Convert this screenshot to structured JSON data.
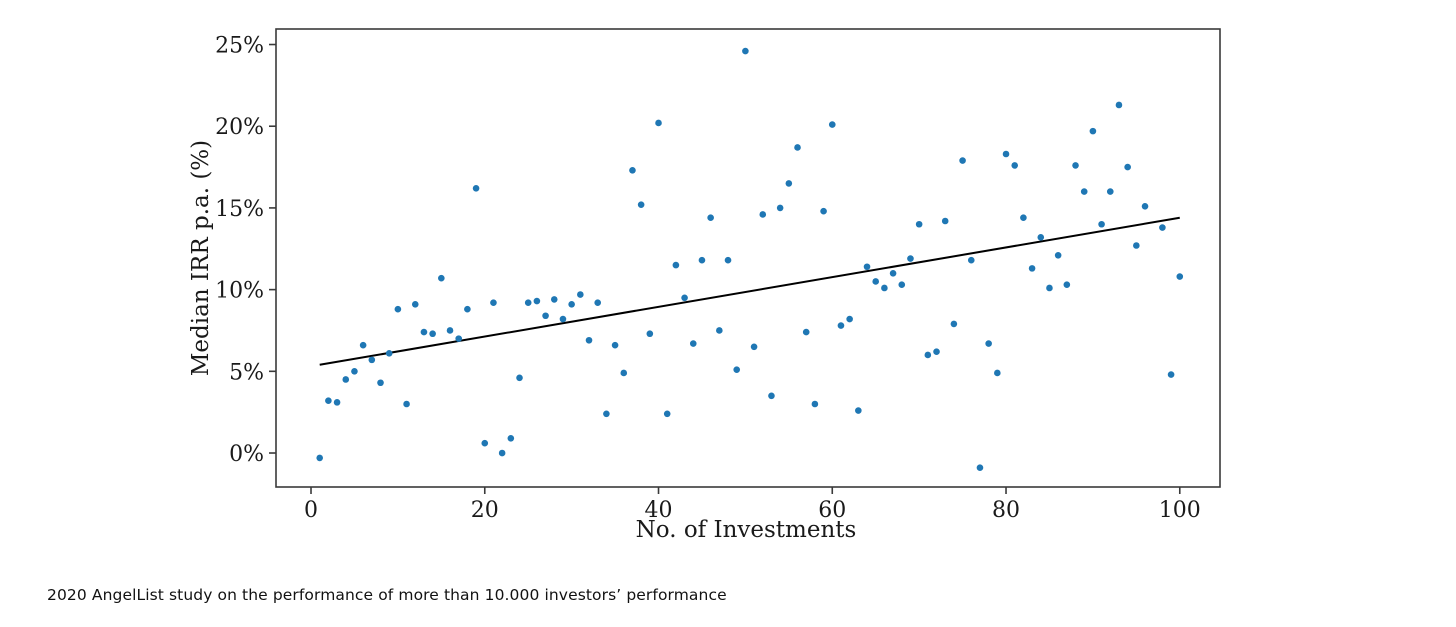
{
  "caption": "2020 AngelList study on the performance of more than 10.000 investors’ performance",
  "chart_data": {
    "type": "scatter",
    "title": "",
    "xlabel": "No. of Investments",
    "ylabel": "Median IRR p.a. (%)",
    "xlim": [
      -4.03,
      104.63
    ],
    "ylim": [
      -2.08,
      25.95
    ],
    "x_ticks": [
      0,
      20,
      40,
      60,
      80,
      100
    ],
    "y_ticks": [
      0,
      5,
      10,
      15,
      20,
      25
    ],
    "y_tick_labels": [
      "0%",
      "5%",
      "10%",
      "15%",
      "20%",
      "25%"
    ],
    "grid": false,
    "legend": "none",
    "point_color": "#1f77b4",
    "axis_color": "#3a3a3a",
    "trend_line": {
      "color": "#000000",
      "x1": 1,
      "y1": 5.4,
      "x2": 100,
      "y2": 14.4
    },
    "points": [
      [
        1,
        -0.3
      ],
      [
        2,
        3.2
      ],
      [
        3,
        3.1
      ],
      [
        4,
        4.5
      ],
      [
        5,
        5.0
      ],
      [
        6,
        6.6
      ],
      [
        7,
        5.7
      ],
      [
        8,
        4.3
      ],
      [
        9,
        6.1
      ],
      [
        10,
        8.8
      ],
      [
        11,
        3.0
      ],
      [
        12,
        9.1
      ],
      [
        13,
        7.4
      ],
      [
        14,
        7.3
      ],
      [
        15,
        10.7
      ],
      [
        16,
        7.5
      ],
      [
        17,
        7.0
      ],
      [
        18,
        8.8
      ],
      [
        19,
        16.2
      ],
      [
        20,
        0.6
      ],
      [
        21,
        9.2
      ],
      [
        22,
        0.0
      ],
      [
        23,
        0.9
      ],
      [
        24,
        4.6
      ],
      [
        25,
        9.2
      ],
      [
        26,
        9.3
      ],
      [
        27,
        8.4
      ],
      [
        28,
        9.4
      ],
      [
        29,
        8.2
      ],
      [
        30,
        9.1
      ],
      [
        31,
        9.7
      ],
      [
        32,
        6.9
      ],
      [
        33,
        9.2
      ],
      [
        34,
        2.4
      ],
      [
        35,
        6.6
      ],
      [
        36,
        4.9
      ],
      [
        37,
        17.3
      ],
      [
        38,
        15.2
      ],
      [
        39,
        7.3
      ],
      [
        40,
        20.2
      ],
      [
        41,
        2.4
      ],
      [
        42,
        11.5
      ],
      [
        43,
        9.5
      ],
      [
        44,
        6.7
      ],
      [
        45,
        11.8
      ],
      [
        46,
        14.4
      ],
      [
        47,
        7.5
      ],
      [
        48,
        11.8
      ],
      [
        49,
        5.1
      ],
      [
        50,
        24.6
      ],
      [
        51,
        6.5
      ],
      [
        52,
        14.6
      ],
      [
        53,
        3.5
      ],
      [
        54,
        15.0
      ],
      [
        55,
        16.5
      ],
      [
        56,
        18.7
      ],
      [
        57,
        7.4
      ],
      [
        58,
        3.0
      ],
      [
        59,
        14.8
      ],
      [
        60,
        20.1
      ],
      [
        61,
        7.8
      ],
      [
        62,
        8.2
      ],
      [
        63,
        2.6
      ],
      [
        64,
        11.4
      ],
      [
        65,
        10.5
      ],
      [
        66,
        10.1
      ],
      [
        67,
        11.0
      ],
      [
        68,
        10.3
      ],
      [
        69,
        11.9
      ],
      [
        70,
        14.0
      ],
      [
        71,
        6.0
      ],
      [
        72,
        6.2
      ],
      [
        73,
        14.2
      ],
      [
        74,
        7.9
      ],
      [
        75,
        17.9
      ],
      [
        76,
        11.8
      ],
      [
        77,
        -0.9
      ],
      [
        78,
        6.7
      ],
      [
        79,
        4.9
      ],
      [
        80,
        18.3
      ],
      [
        81,
        17.6
      ],
      [
        82,
        14.4
      ],
      [
        83,
        11.3
      ],
      [
        84,
        13.2
      ],
      [
        85,
        10.1
      ],
      [
        86,
        12.1
      ],
      [
        87,
        10.3
      ],
      [
        88,
        17.6
      ],
      [
        89,
        16.0
      ],
      [
        90,
        19.7
      ],
      [
        91,
        14.0
      ],
      [
        92,
        16.0
      ],
      [
        93,
        21.3
      ],
      [
        94,
        17.5
      ],
      [
        95,
        12.7
      ],
      [
        96,
        15.1
      ],
      [
        98,
        13.8
      ],
      [
        99,
        4.8
      ],
      [
        100,
        10.8
      ]
    ]
  }
}
